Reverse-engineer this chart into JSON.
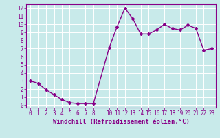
{
  "x": [
    0,
    1,
    2,
    3,
    4,
    5,
    6,
    7,
    8,
    10,
    11,
    12,
    13,
    14,
    15,
    16,
    17,
    18,
    19,
    20,
    21,
    22,
    23
  ],
  "y": [
    3.0,
    2.7,
    1.9,
    1.3,
    0.7,
    0.3,
    0.2,
    0.2,
    0.2,
    7.1,
    9.7,
    12.0,
    10.7,
    8.8,
    8.8,
    9.3,
    10.0,
    9.5,
    9.3,
    9.9,
    9.5,
    6.8,
    7.0
  ],
  "line_color": "#880088",
  "marker": "D",
  "marker_size": 2,
  "bg_color": "#c8eaea",
  "grid_color": "#b0d8d8",
  "xlabel": "Windchill (Refroidissement éolien,°C)",
  "xlim": [
    -0.5,
    23.5
  ],
  "ylim": [
    -0.3,
    12.5
  ],
  "xticks": [
    0,
    1,
    2,
    3,
    4,
    5,
    6,
    7,
    8,
    10,
    11,
    12,
    13,
    14,
    15,
    16,
    17,
    18,
    19,
    20,
    21,
    22,
    23
  ],
  "yticks": [
    0,
    1,
    2,
    3,
    4,
    5,
    6,
    7,
    8,
    9,
    10,
    11,
    12
  ],
  "xlabel_fontsize": 6.5,
  "tick_fontsize": 5.5,
  "line_width": 1.0
}
